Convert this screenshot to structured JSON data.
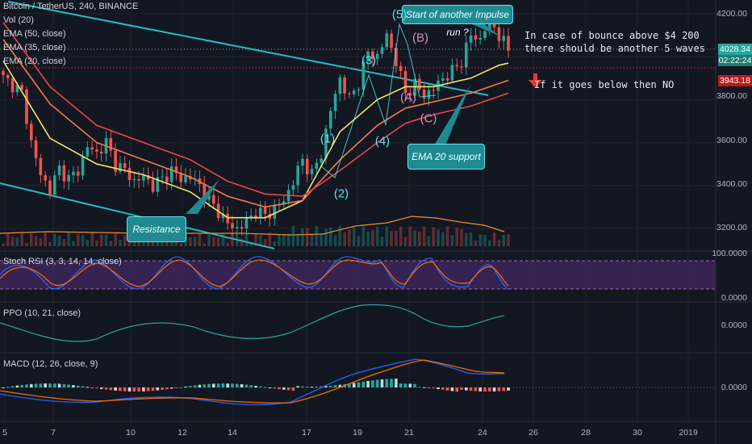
{
  "symbol": {
    "title": "Bitcoin / TetherUS, 240, BINANCE"
  },
  "legend": [
    "Vol (20)",
    "EMA (50, close)",
    "EMA (35, close)",
    "EMA (20, close)"
  ],
  "indicators": {
    "stoch_rsi": "Stoch RSI (3, 3, 14, 14, close)",
    "ppo": "PPO (10, 21, close)",
    "macd": "MACD (12, 26, close, 9)"
  },
  "price_axis": [
    "4200.00",
    "4000.00",
    "3800.00",
    "3600.00",
    "3400.00",
    "3200.00"
  ],
  "price_tags": {
    "last": "4028.34",
    "countdown": "02:22:24",
    "level": "3943.18"
  },
  "stoch_axis": [
    "100.0000",
    "0.0000"
  ],
  "ppo_axis": [
    "0.0000"
  ],
  "macd_axis": [
    "0.0000"
  ],
  "date_axis": [
    "5",
    "7",
    "10",
    "12",
    "14",
    "17",
    "19",
    "21",
    "24",
    "26",
    "28",
    "30",
    "2019"
  ],
  "annotations": {
    "impulse": "Start of another Impulse run ?",
    "ema_support": "EMA 20 support",
    "resistance": "Resistance",
    "note_bounce": "In case of bounce above $4 200\nthere should be another 5 waves",
    "note_below": "If it goes below then NO"
  },
  "waves": {
    "w1": "(1)",
    "w2": "(2)",
    "w3": "(3)",
    "w4": "(4)",
    "w5": "(5)",
    "wa": "(A)",
    "wb": "(B)",
    "wc": "(C)"
  },
  "colors": {
    "background": "#131722",
    "up": "#26a69a",
    "down": "#ef5350",
    "ema20": "#f5e663",
    "ema35": "#f57c4a",
    "ema50": "#e8464a",
    "trendline": "#1fbfc4",
    "wave_up": "#5ee6ea",
    "wave_corr": "#d48db5",
    "stoch_fill": "#4b2a6b"
  },
  "chart_data": {
    "type": "candlestick",
    "xlabel": "",
    "ylabel": "",
    "ylim": [
      3120,
      4250
    ],
    "x_ticks": [
      "5",
      "7",
      "10",
      "12",
      "14",
      "17",
      "19",
      "21",
      "24",
      "26",
      "28",
      "30",
      "2019"
    ],
    "price_path": [
      [
        0,
        3900
      ],
      [
        2,
        3870
      ],
      [
        4,
        3830
      ],
      [
        6,
        3600
      ],
      [
        8,
        3450
      ],
      [
        10,
        3380
      ],
      [
        12,
        3480
      ],
      [
        14,
        3430
      ],
      [
        16,
        3470
      ],
      [
        18,
        3580
      ],
      [
        20,
        3550
      ],
      [
        22,
        3600
      ],
      [
        24,
        3500
      ],
      [
        26,
        3470
      ],
      [
        28,
        3420
      ],
      [
        30,
        3440
      ],
      [
        32,
        3400
      ],
      [
        34,
        3430
      ],
      [
        36,
        3470
      ],
      [
        38,
        3430
      ],
      [
        40,
        3440
      ],
      [
        42,
        3400
      ],
      [
        44,
        3330
      ],
      [
        46,
        3280
      ],
      [
        48,
        3220
      ],
      [
        50,
        3200
      ],
      [
        52,
        3230
      ],
      [
        54,
        3280
      ],
      [
        56,
        3260
      ],
      [
        58,
        3290
      ],
      [
        60,
        3330
      ],
      [
        62,
        3420
      ],
      [
        64,
        3520
      ],
      [
        66,
        3450
      ],
      [
        68,
        3550
      ],
      [
        70,
        3750
      ],
      [
        72,
        3900
      ],
      [
        74,
        3800
      ],
      [
        76,
        3880
      ],
      [
        78,
        4020
      ],
      [
        80,
        4000
      ],
      [
        82,
        4100
      ],
      [
        84,
        3980
      ],
      [
        86,
        3830
      ],
      [
        88,
        3870
      ],
      [
        90,
        3820
      ],
      [
        92,
        3850
      ],
      [
        94,
        3900
      ],
      [
        96,
        3930
      ],
      [
        98,
        3980
      ],
      [
        100,
        4100
      ],
      [
        102,
        4080
      ],
      [
        104,
        4180
      ],
      [
        106,
        4100
      ],
      [
        108,
        4028
      ]
    ],
    "series": [
      {
        "name": "EMA (20, close)",
        "points": [
          [
            0,
            3980
          ],
          [
            10,
            3620
          ],
          [
            20,
            3500
          ],
          [
            30,
            3450
          ],
          [
            40,
            3370
          ],
          [
            48,
            3250
          ],
          [
            56,
            3250
          ],
          [
            64,
            3330
          ],
          [
            72,
            3650
          ],
          [
            80,
            3800
          ],
          [
            86,
            3860
          ],
          [
            92,
            3860
          ],
          [
            100,
            3900
          ],
          [
            106,
            3960
          ],
          [
            108,
            3970
          ]
        ]
      },
      {
        "name": "EMA (35, close)",
        "points": [
          [
            0,
            4080
          ],
          [
            10,
            3780
          ],
          [
            20,
            3600
          ],
          [
            30,
            3520
          ],
          [
            40,
            3440
          ],
          [
            48,
            3350
          ],
          [
            56,
            3300
          ],
          [
            64,
            3330
          ],
          [
            72,
            3520
          ],
          [
            80,
            3680
          ],
          [
            86,
            3760
          ],
          [
            92,
            3790
          ],
          [
            100,
            3830
          ],
          [
            108,
            3890
          ]
        ]
      },
      {
        "name": "EMA (50, close)",
        "points": [
          [
            0,
            4160
          ],
          [
            10,
            3860
          ],
          [
            20,
            3680
          ],
          [
            30,
            3600
          ],
          [
            40,
            3520
          ],
          [
            48,
            3420
          ],
          [
            56,
            3360
          ],
          [
            64,
            3350
          ],
          [
            72,
            3470
          ],
          [
            80,
            3600
          ],
          [
            86,
            3690
          ],
          [
            92,
            3730
          ],
          [
            100,
            3770
          ],
          [
            108,
            3830
          ]
        ]
      }
    ]
  }
}
